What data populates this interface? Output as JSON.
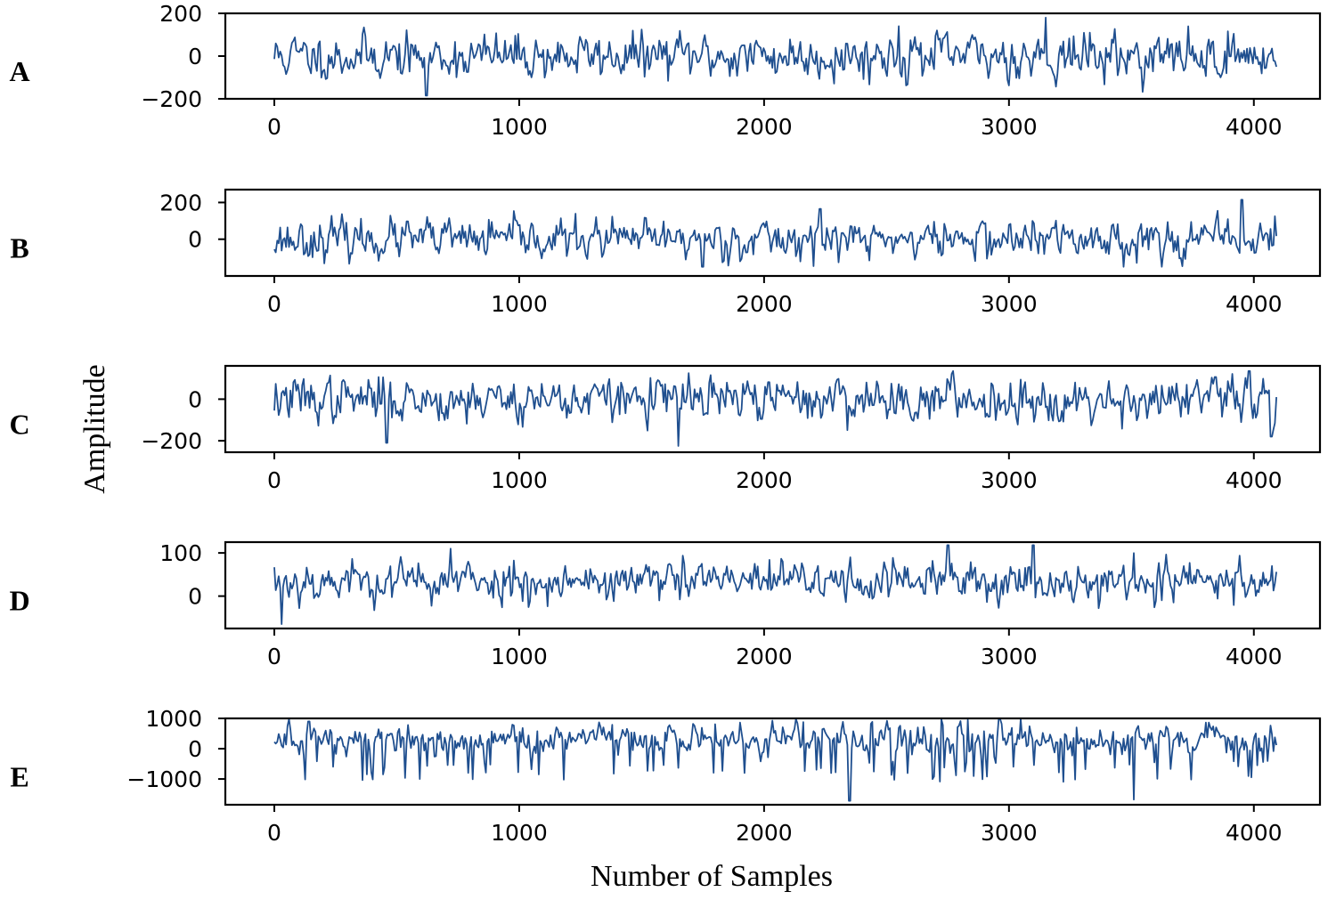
{
  "xlabel": "Number of Samples",
  "ylabel": "Amplitude",
  "colors": {
    "signal": "#1f4f8f"
  },
  "chart_data": [
    {
      "type": "line",
      "label": "A",
      "xlim": [
        -200,
        4270
      ],
      "ylim": [
        -200,
        200
      ],
      "xticks": [
        0,
        1000,
        2000,
        3000,
        4000
      ],
      "xtick_labels": [
        "0",
        "1000",
        "2000",
        "3000",
        "4000"
      ],
      "yticks": [
        -200,
        0,
        200
      ],
      "ytick_labels": [
        "−200",
        "0",
        "200"
      ],
      "n_samples": 4097,
      "amplitude": 55,
      "peak_min": -185,
      "peak_max": 180,
      "spikes": [
        [
          620,
          -185
        ],
        [
          3150,
          180
        ],
        [
          2550,
          140
        ]
      ],
      "seed": 11
    },
    {
      "type": "line",
      "label": "B",
      "xlim": [
        -200,
        4270
      ],
      "ylim": [
        -200,
        270
      ],
      "xticks": [
        0,
        1000,
        2000,
        3000,
        4000
      ],
      "xtick_labels": [
        "0",
        "1000",
        "2000",
        "3000",
        "4000"
      ],
      "yticks": [
        0,
        200
      ],
      "ytick_labels": [
        "0",
        "200"
      ],
      "n_samples": 4097,
      "amplitude": 55,
      "peak_min": -150,
      "peak_max": 215,
      "spikes": [
        [
          3950,
          215
        ],
        [
          1750,
          -150
        ],
        [
          2230,
          165
        ]
      ],
      "seed": 23
    },
    {
      "type": "line",
      "label": "C",
      "xlim": [
        -200,
        4270
      ],
      "ylim": [
        -255,
        160
      ],
      "xticks": [
        0,
        1000,
        2000,
        3000,
        4000
      ],
      "xtick_labels": [
        "0",
        "1000",
        "2000",
        "3000",
        "4000"
      ],
      "yticks": [
        -200,
        0
      ],
      "ytick_labels": [
        "−200",
        "0"
      ],
      "n_samples": 4097,
      "amplitude": 55,
      "peak_min": -225,
      "peak_max": 135,
      "spikes": [
        [
          1650,
          -225
        ],
        [
          460,
          -210
        ],
        [
          3980,
          135
        ],
        [
          4070,
          -180
        ]
      ],
      "seed": 37
    },
    {
      "type": "line",
      "label": "D",
      "xlim": [
        -200,
        4270
      ],
      "ylim": [
        -75,
        125
      ],
      "xticks": [
        0,
        1000,
        2000,
        3000,
        4000
      ],
      "xtick_labels": [
        "0",
        "1000",
        "2000",
        "3000",
        "4000"
      ],
      "yticks": [
        0,
        100
      ],
      "ytick_labels": [
        "0",
        "100"
      ],
      "n_samples": 4097,
      "amplitude": 25,
      "offset": 35,
      "peak_min": -65,
      "peak_max": 118,
      "spikes": [
        [
          30,
          -65
        ],
        [
          2750,
          118
        ],
        [
          3100,
          118
        ],
        [
          720,
          110
        ]
      ],
      "seed": 53
    },
    {
      "type": "line",
      "label": "E",
      "xlim": [
        -200,
        4270
      ],
      "ylim": [
        -1850,
        1000
      ],
      "xticks": [
        0,
        1000,
        2000,
        3000,
        4000
      ],
      "xtick_labels": [
        "0",
        "1000",
        "2000",
        "3000",
        "4000"
      ],
      "yticks": [
        -1000,
        0,
        1000
      ],
      "ytick_labels": [
        "−1000",
        "0",
        "1000"
      ],
      "n_samples": 4097,
      "amplitude": 260,
      "offset": 300,
      "peak_min": -1720,
      "peak_max": 980,
      "spikes": [
        [
          2350,
          -1720
        ],
        [
          3510,
          -1680
        ],
        [
          2960,
          980
        ],
        [
          140,
          900
        ]
      ],
      "seed": 71
    }
  ]
}
